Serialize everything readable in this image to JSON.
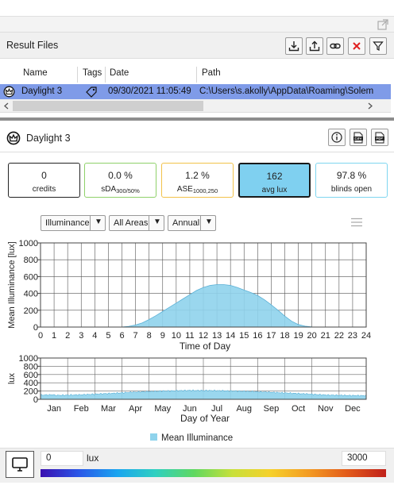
{
  "result_files": {
    "title": "Result Files",
    "columns": [
      "Name",
      "Tags",
      "Date",
      "Path"
    ],
    "rows": [
      {
        "name": "Daylight 3",
        "date": "09/30/2021 11:05:49",
        "path": "C:\\Users\\s.akolly\\AppData\\Roaming\\Solem"
      }
    ]
  },
  "daylight": {
    "title": "Daylight 3",
    "metrics": [
      {
        "value": "0",
        "label": "credits",
        "color": "#222222"
      },
      {
        "value": "0.0 %",
        "label": "sDA",
        "sub": "300/50%",
        "color": "#8fd16a"
      },
      {
        "value": "1.2 %",
        "label": "ASE",
        "sub": "1000,250",
        "color": "#f2c24a"
      },
      {
        "value": "162",
        "label": "avg lux",
        "color": "#1a1a1a",
        "fill": "#7fd0f0"
      },
      {
        "value": "97.8 %",
        "label": "blinds open",
        "color": "#7fd6f0"
      }
    ]
  },
  "filters": {
    "metric": "Illuminance",
    "area": "All Areas",
    "period": "Annual"
  },
  "chart_data": [
    {
      "type": "area",
      "ylabel": "Mean Illuminance [lux]",
      "xlabel": "Time of Day",
      "ylim": [
        0,
        1000
      ],
      "yticks": [
        0,
        200,
        400,
        600,
        800,
        1000
      ],
      "xlim": [
        0,
        24
      ],
      "xticks": [
        "0",
        "1",
        "2",
        "3",
        "4",
        "5",
        "6",
        "7",
        "8",
        "9",
        "10",
        "11",
        "12",
        "13",
        "14",
        "15",
        "16",
        "17",
        "18",
        "19",
        "20",
        "21",
        "22",
        "23",
        "24"
      ],
      "x": [
        0,
        1,
        2,
        3,
        4,
        5,
        6,
        6.5,
        7,
        7.5,
        8,
        8.5,
        9,
        9.5,
        10,
        10.5,
        11,
        11.5,
        12,
        12.5,
        13,
        13.5,
        14,
        14.5,
        15,
        15.5,
        16,
        16.5,
        17,
        17.5,
        18,
        18.5,
        19,
        19.5,
        20,
        21,
        22,
        23,
        24
      ],
      "y": [
        0,
        0,
        0,
        0,
        0,
        0,
        1,
        8,
        25,
        50,
        90,
        135,
        185,
        235,
        285,
        335,
        385,
        435,
        470,
        495,
        505,
        505,
        495,
        470,
        440,
        410,
        375,
        325,
        265,
        200,
        130,
        70,
        30,
        10,
        2,
        0,
        0,
        0,
        0
      ],
      "color": "#8fd3ec",
      "grid": true
    },
    {
      "type": "area",
      "ylabel": "lux",
      "xlabel": "Day of Year",
      "ylim": [
        0,
        1000
      ],
      "yticks": [
        0,
        200,
        400,
        600,
        800,
        1000
      ],
      "categories": [
        "Jan",
        "Feb",
        "Mar",
        "Apr",
        "May",
        "Jun",
        "Jul",
        "Aug",
        "Sep",
        "Oct",
        "Nov",
        "Dec"
      ],
      "values": [
        95,
        110,
        140,
        175,
        200,
        215,
        210,
        195,
        170,
        140,
        105,
        90
      ],
      "color": "#8fd3ec",
      "grid": true,
      "legend": {
        "label": "Mean Illuminance",
        "placement": "bottom"
      }
    }
  ],
  "color_scale": {
    "min": "0",
    "unit": "lux",
    "max": "3000"
  }
}
